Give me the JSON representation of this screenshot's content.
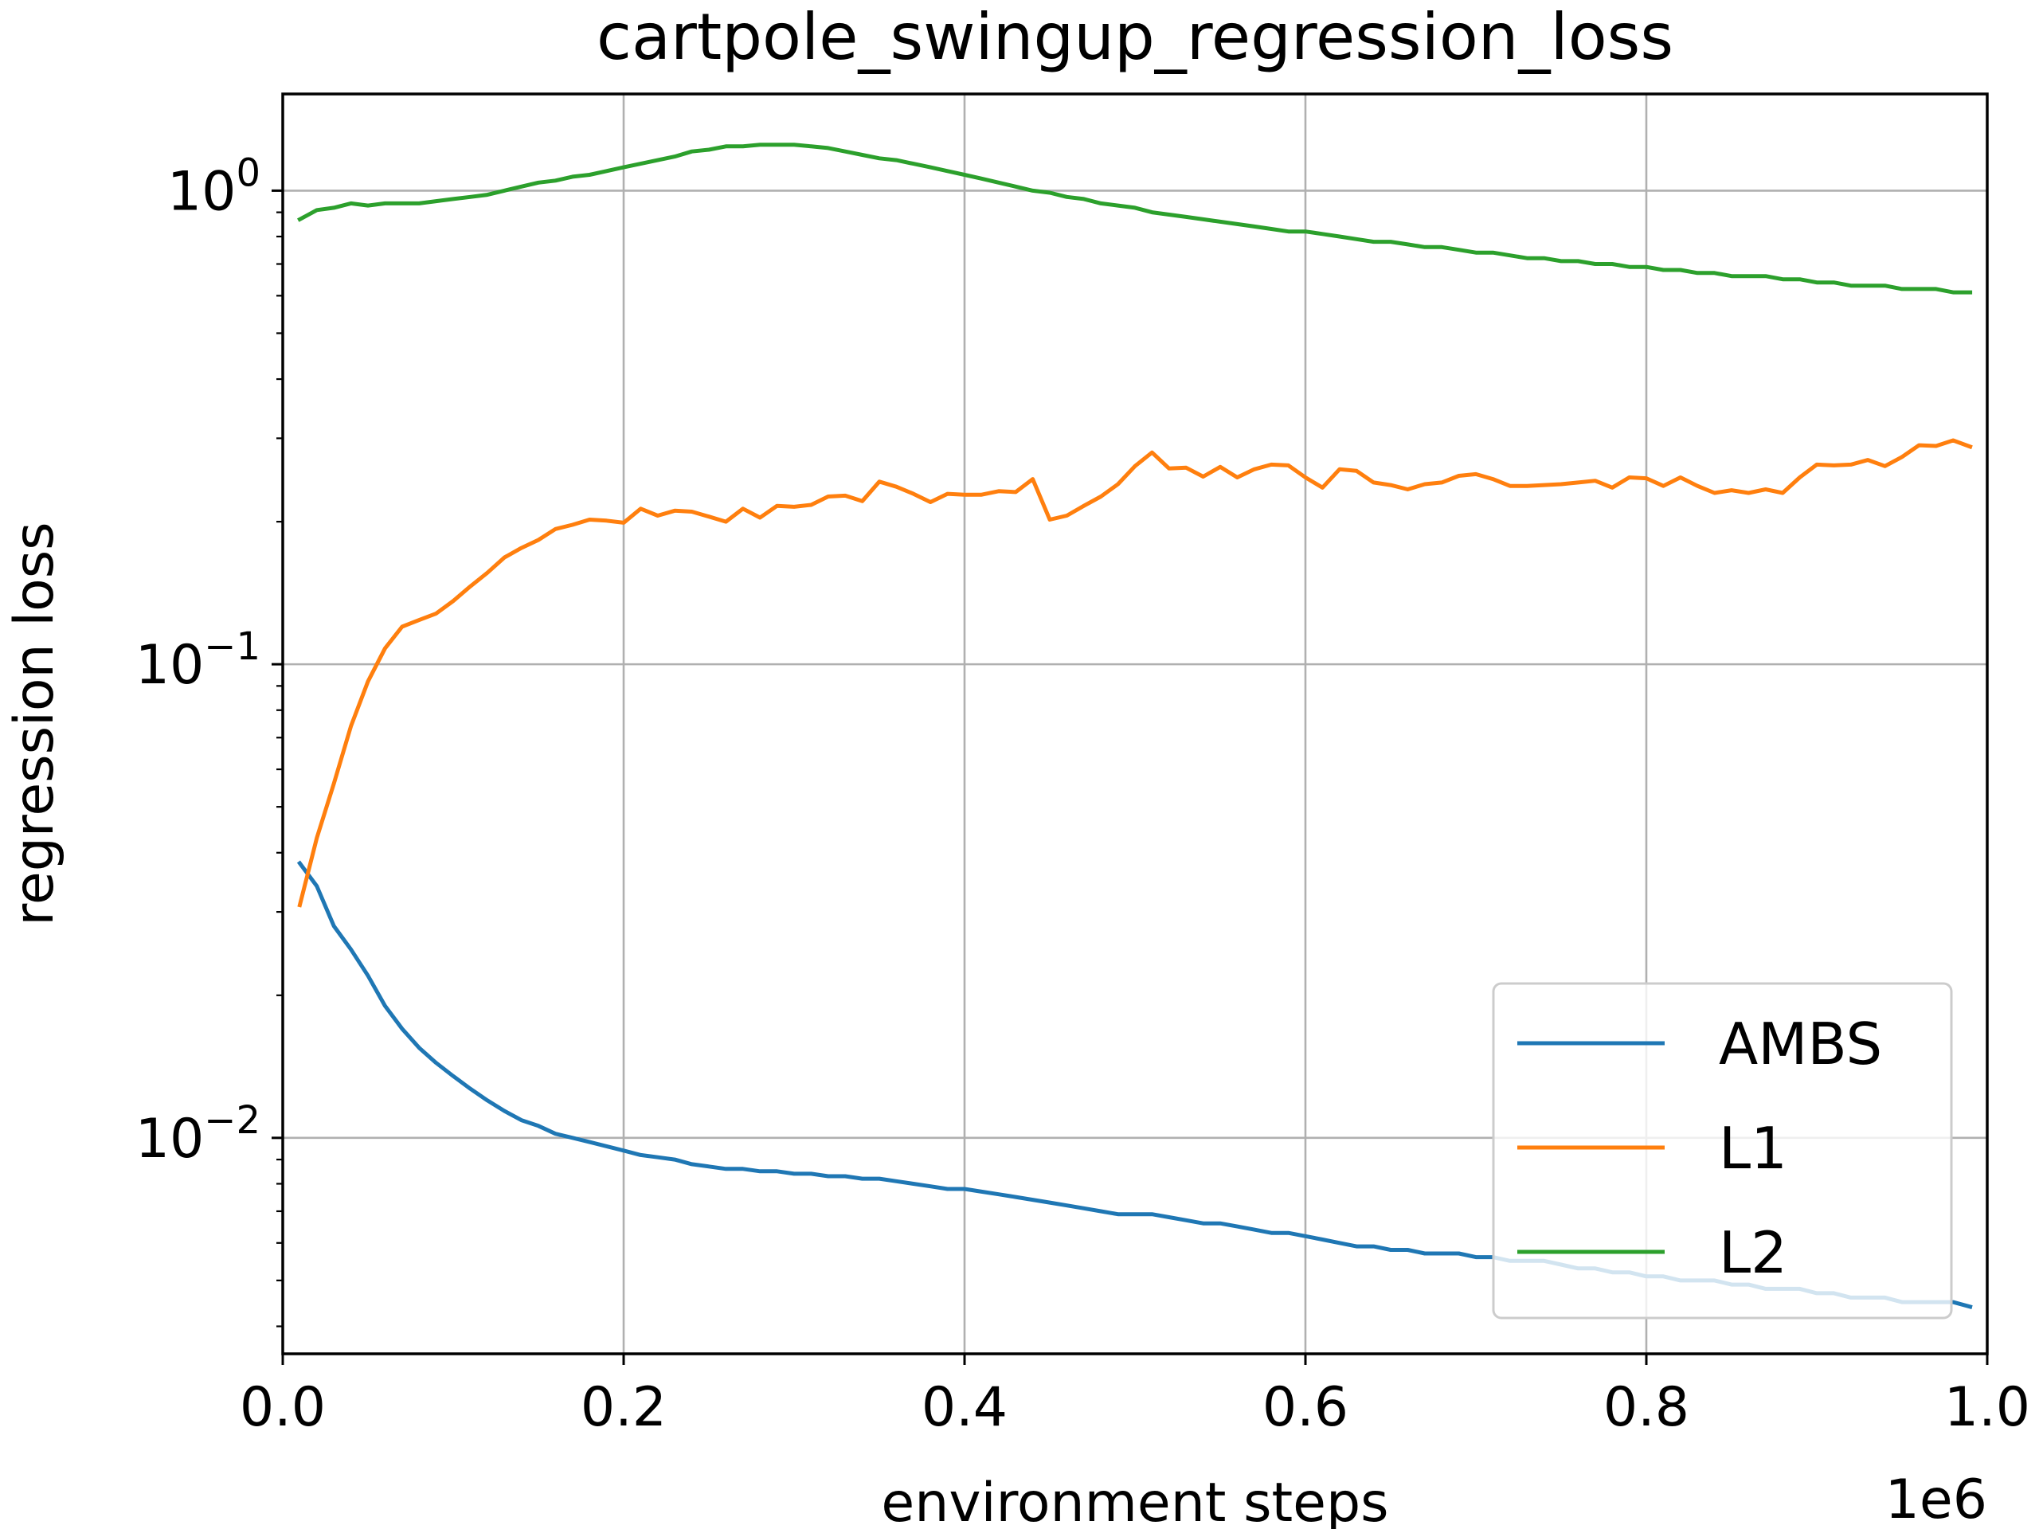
{
  "chart_data": {
    "type": "line",
    "title": "cartpole_swingup_regression_loss",
    "xlabel": "environment steps",
    "ylabel": "regression loss",
    "x_offset_text": "1e6",
    "xscale": "linear",
    "yscale": "log",
    "xlim": [
      0.0,
      1.0
    ],
    "ylim": [
      0.0035,
      1.6
    ],
    "grid": true,
    "legend_position": "lower-right",
    "x_ticks": [
      {
        "value": 0.0,
        "label": "0.0"
      },
      {
        "value": 0.2,
        "label": "0.2"
      },
      {
        "value": 0.4,
        "label": "0.4"
      },
      {
        "value": 0.6,
        "label": "0.6"
      },
      {
        "value": 0.8,
        "label": "0.8"
      },
      {
        "value": 1.0,
        "label": "1.0"
      }
    ],
    "y_ticks": [
      {
        "value": 1,
        "base": "10",
        "exponent": "0"
      },
      {
        "value": 0.1,
        "base": "10",
        "exponent": "−1"
      },
      {
        "value": 0.01,
        "base": "10",
        "exponent": "−2"
      }
    ],
    "x": [
      0.01,
      0.02,
      0.03,
      0.04,
      0.05,
      0.06,
      0.07,
      0.08,
      0.09,
      0.1,
      0.11,
      0.12,
      0.13,
      0.14,
      0.15,
      0.16,
      0.17,
      0.18,
      0.19,
      0.2,
      0.21,
      0.22,
      0.23,
      0.24,
      0.25,
      0.26,
      0.27,
      0.28,
      0.29,
      0.3,
      0.31,
      0.32,
      0.33,
      0.34,
      0.35,
      0.36,
      0.37,
      0.38,
      0.39,
      0.4,
      0.41,
      0.42,
      0.43,
      0.44,
      0.45,
      0.46,
      0.47,
      0.48,
      0.49,
      0.5,
      0.51,
      0.52,
      0.53,
      0.54,
      0.55,
      0.56,
      0.57,
      0.58,
      0.59,
      0.6,
      0.61,
      0.62,
      0.63,
      0.64,
      0.65,
      0.66,
      0.67,
      0.68,
      0.69,
      0.7,
      0.71,
      0.72,
      0.73,
      0.74,
      0.75,
      0.76,
      0.77,
      0.78,
      0.79,
      0.8,
      0.81,
      0.82,
      0.83,
      0.84,
      0.85,
      0.86,
      0.87,
      0.88,
      0.89,
      0.9,
      0.91,
      0.92,
      0.93,
      0.94,
      0.95,
      0.96,
      0.97,
      0.98,
      0.99
    ],
    "series": [
      {
        "name": "AMBS",
        "color": "#1f77b4",
        "values": [
          0.038,
          0.034,
          0.028,
          0.025,
          0.022,
          0.019,
          0.017,
          0.0155,
          0.0144,
          0.0135,
          0.0127,
          0.012,
          0.0114,
          0.0109,
          0.0106,
          0.0102,
          0.01,
          0.0098,
          0.0096,
          0.0094,
          0.0092,
          0.0091,
          0.009,
          0.0088,
          0.0087,
          0.0086,
          0.0086,
          0.0085,
          0.0085,
          0.0084,
          0.0084,
          0.0083,
          0.0083,
          0.0082,
          0.0082,
          0.0081,
          0.008,
          0.0079,
          0.0078,
          0.0078,
          0.0077,
          0.0076,
          0.0075,
          0.0074,
          0.0073,
          0.0072,
          0.0071,
          0.007,
          0.0069,
          0.0069,
          0.0069,
          0.0068,
          0.0067,
          0.0066,
          0.0066,
          0.0065,
          0.0064,
          0.0063,
          0.0063,
          0.0062,
          0.0061,
          0.006,
          0.0059,
          0.0059,
          0.0058,
          0.0058,
          0.0057,
          0.0057,
          0.0057,
          0.0056,
          0.0056,
          0.0055,
          0.0055,
          0.0055,
          0.0054,
          0.0053,
          0.0053,
          0.0052,
          0.0052,
          0.0051,
          0.0051,
          0.005,
          0.005,
          0.005,
          0.0049,
          0.0049,
          0.0048,
          0.0048,
          0.0048,
          0.0047,
          0.0047,
          0.0046,
          0.0046,
          0.0046,
          0.0045,
          0.0045,
          0.0045,
          0.0045,
          0.0044
        ]
      },
      {
        "name": "L1",
        "color": "#ff7f0e",
        "values": [
          0.031,
          0.043,
          0.056,
          0.074,
          0.092,
          0.108,
          0.12,
          0.124,
          0.128,
          0.136,
          0.146,
          0.156,
          0.168,
          0.176,
          0.183,
          0.193,
          0.197,
          0.202,
          0.201,
          0.199,
          0.213,
          0.206,
          0.211,
          0.21,
          0.205,
          0.2,
          0.213,
          0.204,
          0.216,
          0.215,
          0.217,
          0.226,
          0.227,
          0.221,
          0.243,
          0.237,
          0.229,
          0.22,
          0.229,
          0.228,
          0.228,
          0.232,
          0.231,
          0.246,
          0.202,
          0.206,
          0.216,
          0.226,
          0.24,
          0.262,
          0.28,
          0.259,
          0.26,
          0.249,
          0.261,
          0.248,
          0.258,
          0.264,
          0.263,
          0.248,
          0.236,
          0.258,
          0.256,
          0.242,
          0.239,
          0.234,
          0.24,
          0.242,
          0.25,
          0.252,
          0.246,
          0.238,
          0.238,
          0.239,
          0.24,
          0.242,
          0.244,
          0.236,
          0.248,
          0.247,
          0.238,
          0.248,
          0.238,
          0.23,
          0.233,
          0.23,
          0.234,
          0.23,
          0.248,
          0.264,
          0.263,
          0.264,
          0.27,
          0.262,
          0.274,
          0.29,
          0.289,
          0.297,
          0.288
        ]
      },
      {
        "name": "L2",
        "color": "#2ca02c",
        "values": [
          0.87,
          0.91,
          0.92,
          0.94,
          0.93,
          0.94,
          0.94,
          0.94,
          0.95,
          0.96,
          0.97,
          0.98,
          1.0,
          1.02,
          1.04,
          1.05,
          1.07,
          1.08,
          1.1,
          1.12,
          1.14,
          1.16,
          1.18,
          1.21,
          1.22,
          1.24,
          1.24,
          1.25,
          1.25,
          1.25,
          1.24,
          1.23,
          1.21,
          1.19,
          1.17,
          1.16,
          1.14,
          1.12,
          1.1,
          1.08,
          1.06,
          1.04,
          1.02,
          1.0,
          0.99,
          0.97,
          0.96,
          0.94,
          0.93,
          0.92,
          0.9,
          0.89,
          0.88,
          0.87,
          0.86,
          0.85,
          0.84,
          0.83,
          0.82,
          0.82,
          0.81,
          0.8,
          0.79,
          0.78,
          0.78,
          0.77,
          0.76,
          0.76,
          0.75,
          0.74,
          0.74,
          0.73,
          0.72,
          0.72,
          0.71,
          0.71,
          0.7,
          0.7,
          0.69,
          0.69,
          0.68,
          0.68,
          0.67,
          0.67,
          0.66,
          0.66,
          0.66,
          0.65,
          0.65,
          0.64,
          0.64,
          0.63,
          0.63,
          0.63,
          0.62,
          0.62,
          0.62,
          0.61,
          0.61
        ]
      }
    ]
  }
}
